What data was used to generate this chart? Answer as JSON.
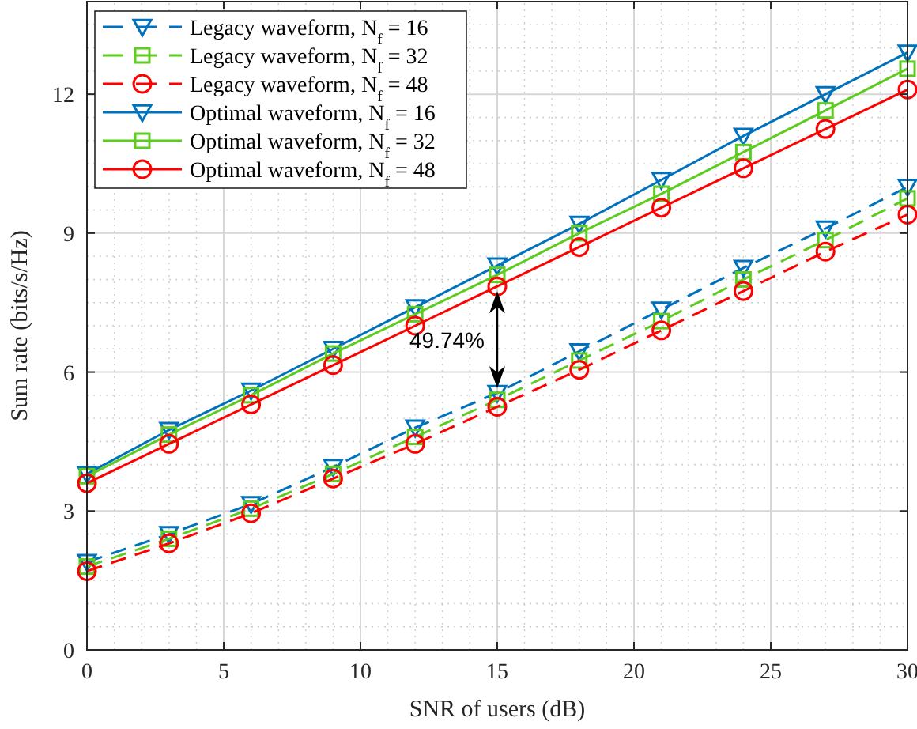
{
  "chart_data": {
    "type": "line",
    "xlabel": "SNR of users (dB)",
    "ylabel": "Sum rate (bits/s/Hz)",
    "x": [
      0,
      3,
      6,
      9,
      12,
      15,
      18,
      21,
      24,
      27,
      30
    ],
    "xlim": [
      0,
      30
    ],
    "xticks": [
      0,
      5,
      10,
      15,
      20,
      25,
      30
    ],
    "ylim": [
      0,
      14
    ],
    "yticks": [
      0,
      3,
      6,
      9,
      12
    ],
    "grid": true,
    "legend": "top left",
    "series": [
      {
        "name": "Legacy waveform, N$_{f}$ = 16",
        "color": "#0072bd",
        "marker": "triangle",
        "line_style": "dashed",
        "values": [
          1.9,
          2.5,
          3.15,
          3.95,
          4.8,
          5.55,
          6.45,
          7.35,
          8.25,
          9.1,
          10.0
        ]
      },
      {
        "name": "Legacy waveform, N$_{f}$ = 32",
        "color": "#5dcc1e",
        "marker": "square",
        "line_style": "dashed",
        "values": [
          1.8,
          2.4,
          3.05,
          3.8,
          4.6,
          5.4,
          6.25,
          7.1,
          8.0,
          8.85,
          9.75
        ]
      },
      {
        "name": "Legacy waveform, N$_{f}$ = 48",
        "color": "#ff0000",
        "marker": "circle",
        "line_style": "dashed",
        "values": [
          1.7,
          2.3,
          2.95,
          3.7,
          4.45,
          5.25,
          6.05,
          6.9,
          7.75,
          8.6,
          9.4
        ]
      },
      {
        "name": "Optimal waveform, N$_{f}$ = 16",
        "color": "#0072bd",
        "marker": "triangle",
        "line_style": "solid",
        "values": [
          3.8,
          4.75,
          5.6,
          6.5,
          7.4,
          8.3,
          9.2,
          10.15,
          11.1,
          12.0,
          12.9
        ]
      },
      {
        "name": "Optimal waveform, N$_{f}$ = 32",
        "color": "#5dcc1e",
        "marker": "square",
        "line_style": "solid",
        "values": [
          3.75,
          4.65,
          5.5,
          6.4,
          7.25,
          8.1,
          9.0,
          9.85,
          10.75,
          11.65,
          12.55
        ]
      },
      {
        "name": "Optimal waveform, N$_{f}$ = 48",
        "color": "#ff0000",
        "marker": "circle",
        "line_style": "solid",
        "values": [
          3.6,
          4.45,
          5.3,
          6.15,
          7.0,
          7.85,
          8.7,
          9.55,
          10.4,
          11.25,
          12.1
        ]
      }
    ],
    "annotations": [
      "49.74%"
    ]
  }
}
